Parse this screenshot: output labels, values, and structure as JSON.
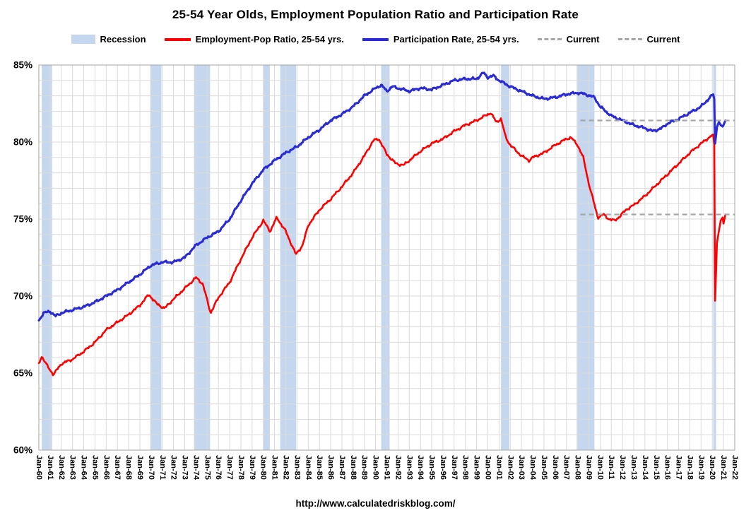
{
  "title": "25-54 Year Olds, Employment Population Ratio and Participation Rate",
  "footer_url": "http://www.calculatedriskblog.com/",
  "colors": {
    "employment_line": "#FF0000",
    "participation_line": "#2B2BD5",
    "recession_band": "#C5D7EE",
    "current_line": "#A6A6A6",
    "grid": "#DADADA",
    "plot_border": "#A6A6A6"
  },
  "legend": [
    {
      "label": "Recession",
      "type": "band"
    },
    {
      "label": "Employment-Pop Ratio, 25-54 yrs.",
      "type": "line",
      "color": "#FF0000"
    },
    {
      "label": "Participation Rate, 25-54 yrs.",
      "type": "line",
      "color": "#2B2BD5"
    },
    {
      "label": "Current",
      "type": "dashed"
    },
    {
      "label": "Current",
      "type": "dashed"
    }
  ],
  "chart_data": {
    "type": "line",
    "title": "25-54 Year Olds, Employment Population Ratio and Participation Rate",
    "xlabel": "",
    "ylabel": "",
    "grid": true,
    "legend_position": "top",
    "x_axis": {
      "start_year": 1960,
      "end_year": 2022,
      "tick_labels": [
        "Jan-60",
        "Jan-61",
        "Jan-62",
        "Jan-63",
        "Jan-64",
        "Jan-65",
        "Jan-66",
        "Jan-67",
        "Jan-68",
        "Jan-69",
        "Jan-70",
        "Jan-71",
        "Jan-72",
        "Jan-73",
        "Jan-74",
        "Jan-75",
        "Jan-76",
        "Jan-77",
        "Jan-78",
        "Jan-79",
        "Jan-80",
        "Jan-81",
        "Jan-82",
        "Jan-83",
        "Jan-84",
        "Jan-85",
        "Jan-86",
        "Jan-87",
        "Jan-88",
        "Jan-89",
        "Jan-90",
        "Jan-91",
        "Jan-92",
        "Jan-93",
        "Jan-94",
        "Jan-95",
        "Jan-96",
        "Jan-97",
        "Jan-98",
        "Jan-99",
        "Jan-00",
        "Jan-01",
        "Jan-02",
        "Jan-03",
        "Jan-04",
        "Jan-05",
        "Jan-06",
        "Jan-07",
        "Jan-08",
        "Jan-09",
        "Jan-10",
        "Jan-11",
        "Jan-12",
        "Jan-13",
        "Jan-14",
        "Jan-15",
        "Jan-16",
        "Jan-17",
        "Jan-18",
        "Jan-19",
        "Jan-20",
        "Jan-21",
        "Jan-22"
      ]
    },
    "y_axis": {
      "min": 60,
      "max": 85,
      "major_step": 5,
      "minor_step": 1,
      "tick_labels": [
        "60%",
        "65%",
        "70%",
        "75%",
        "80%",
        "85%"
      ]
    },
    "series": [
      {
        "name": "Employment-Pop Ratio, 25-54 yrs.",
        "color": "#FF0000",
        "points": [
          [
            1960.0,
            65.6
          ],
          [
            1960.25,
            66.1
          ],
          [
            1960.8,
            65.4
          ],
          [
            1961.3,
            64.9
          ],
          [
            1962.0,
            65.6
          ],
          [
            1963.0,
            65.9
          ],
          [
            1964.0,
            66.4
          ],
          [
            1965.0,
            67.0
          ],
          [
            1966.0,
            67.8
          ],
          [
            1967.0,
            68.3
          ],
          [
            1968.0,
            68.8
          ],
          [
            1969.0,
            69.4
          ],
          [
            1969.8,
            70.1
          ],
          [
            1970.5,
            69.5
          ],
          [
            1971.2,
            69.2
          ],
          [
            1972.0,
            69.8
          ],
          [
            1973.0,
            70.5
          ],
          [
            1974.0,
            71.2
          ],
          [
            1974.6,
            70.8
          ],
          [
            1975.3,
            68.9
          ],
          [
            1976.0,
            69.9
          ],
          [
            1977.0,
            70.9
          ],
          [
            1978.0,
            72.4
          ],
          [
            1979.0,
            73.8
          ],
          [
            1980.0,
            74.9
          ],
          [
            1980.6,
            74.2
          ],
          [
            1981.2,
            75.1
          ],
          [
            1982.0,
            74.2
          ],
          [
            1982.9,
            72.7
          ],
          [
            1983.5,
            73.3
          ],
          [
            1984.0,
            74.6
          ],
          [
            1985.0,
            75.6
          ],
          [
            1986.0,
            76.3
          ],
          [
            1987.0,
            77.1
          ],
          [
            1988.0,
            78.0
          ],
          [
            1989.0,
            79.1
          ],
          [
            1989.8,
            80.1
          ],
          [
            1990.3,
            80.2
          ],
          [
            1991.0,
            79.2
          ],
          [
            1991.8,
            78.6
          ],
          [
            1992.5,
            78.5
          ],
          [
            1993.0,
            78.8
          ],
          [
            1994.0,
            79.4
          ],
          [
            1995.0,
            79.9
          ],
          [
            1996.0,
            80.2
          ],
          [
            1997.0,
            80.7
          ],
          [
            1998.0,
            81.1
          ],
          [
            1999.0,
            81.4
          ],
          [
            2000.25,
            81.9
          ],
          [
            2000.75,
            81.3
          ],
          [
            2001.17,
            81.5
          ],
          [
            2001.6,
            80.3
          ],
          [
            2002.0,
            79.8
          ],
          [
            2003.0,
            79.1
          ],
          [
            2003.7,
            78.8
          ],
          [
            2004.0,
            79.0
          ],
          [
            2005.0,
            79.3
          ],
          [
            2006.0,
            79.8
          ],
          [
            2007.0,
            80.2
          ],
          [
            2007.4,
            80.3
          ],
          [
            2008.0,
            79.8
          ],
          [
            2008.5,
            79.0
          ],
          [
            2009.0,
            77.3
          ],
          [
            2009.8,
            75.1
          ],
          [
            2010.3,
            75.3
          ],
          [
            2010.8,
            75.0
          ],
          [
            2011.3,
            74.9
          ],
          [
            2011.8,
            75.2
          ],
          [
            2012.3,
            75.6
          ],
          [
            2013.0,
            75.9
          ],
          [
            2014.0,
            76.5
          ],
          [
            2015.0,
            77.2
          ],
          [
            2016.0,
            77.9
          ],
          [
            2017.0,
            78.6
          ],
          [
            2018.0,
            79.3
          ],
          [
            2019.0,
            79.9
          ],
          [
            2019.9,
            80.4
          ],
          [
            2020.08,
            80.5
          ],
          [
            2020.17,
            79.8
          ],
          [
            2020.25,
            69.7
          ],
          [
            2020.33,
            71.4
          ],
          [
            2020.42,
            73.5
          ],
          [
            2020.58,
            74.2
          ],
          [
            2020.75,
            74.9
          ],
          [
            2020.92,
            75.1
          ],
          [
            2021.0,
            74.7
          ],
          [
            2021.17,
            75.3
          ]
        ]
      },
      {
        "name": "Participation Rate, 25-54 yrs.",
        "color": "#2B2BD5",
        "points": [
          [
            1960.0,
            68.4
          ],
          [
            1960.4,
            68.9
          ],
          [
            1961.0,
            69.0
          ],
          [
            1961.5,
            68.7
          ],
          [
            1962.0,
            68.9
          ],
          [
            1963.0,
            69.1
          ],
          [
            1964.0,
            69.3
          ],
          [
            1965.0,
            69.6
          ],
          [
            1966.0,
            70.0
          ],
          [
            1967.0,
            70.4
          ],
          [
            1968.0,
            70.9
          ],
          [
            1969.0,
            71.4
          ],
          [
            1970.0,
            72.0
          ],
          [
            1971.0,
            72.2
          ],
          [
            1972.0,
            72.2
          ],
          [
            1973.0,
            72.5
          ],
          [
            1974.0,
            73.3
          ],
          [
            1975.0,
            73.8
          ],
          [
            1976.0,
            74.2
          ],
          [
            1977.0,
            75.0
          ],
          [
            1978.0,
            76.2
          ],
          [
            1979.0,
            77.3
          ],
          [
            1980.0,
            78.2
          ],
          [
            1981.0,
            78.8
          ],
          [
            1982.0,
            79.3
          ],
          [
            1983.0,
            79.7
          ],
          [
            1984.0,
            80.3
          ],
          [
            1985.0,
            80.8
          ],
          [
            1986.0,
            81.4
          ],
          [
            1987.0,
            81.8
          ],
          [
            1988.0,
            82.3
          ],
          [
            1989.0,
            83.0
          ],
          [
            1990.0,
            83.5
          ],
          [
            1990.5,
            83.7
          ],
          [
            1991.0,
            83.3
          ],
          [
            1991.5,
            83.6
          ],
          [
            1992.0,
            83.5
          ],
          [
            1993.0,
            83.3
          ],
          [
            1994.0,
            83.5
          ],
          [
            1995.0,
            83.4
          ],
          [
            1996.0,
            83.7
          ],
          [
            1997.0,
            84.0
          ],
          [
            1998.0,
            84.1
          ],
          [
            1999.0,
            84.1
          ],
          [
            1999.6,
            84.5
          ],
          [
            2000.0,
            84.2
          ],
          [
            2000.5,
            84.3
          ],
          [
            2001.0,
            84.0
          ],
          [
            2002.0,
            83.6
          ],
          [
            2003.0,
            83.3
          ],
          [
            2004.0,
            83.0
          ],
          [
            2005.0,
            82.8
          ],
          [
            2006.0,
            82.9
          ],
          [
            2007.0,
            83.1
          ],
          [
            2008.0,
            83.2
          ],
          [
            2008.7,
            83.1
          ],
          [
            2009.5,
            82.9
          ],
          [
            2010.0,
            82.3
          ],
          [
            2011.0,
            81.7
          ],
          [
            2012.0,
            81.4
          ],
          [
            2013.0,
            81.1
          ],
          [
            2014.0,
            80.9
          ],
          [
            2014.7,
            80.7
          ],
          [
            2015.5,
            80.9
          ],
          [
            2016.0,
            81.2
          ],
          [
            2017.0,
            81.5
          ],
          [
            2018.0,
            81.9
          ],
          [
            2019.0,
            82.3
          ],
          [
            2019.8,
            82.9
          ],
          [
            2020.08,
            83.1
          ],
          [
            2020.17,
            82.8
          ],
          [
            2020.25,
            79.9
          ],
          [
            2020.42,
            81.0
          ],
          [
            2020.58,
            81.3
          ],
          [
            2020.75,
            81.1
          ],
          [
            2020.92,
            81.0
          ],
          [
            2021.0,
            81.1
          ],
          [
            2021.17,
            81.4
          ]
        ]
      }
    ],
    "current_lines": [
      {
        "label": "Current",
        "value": 81.4,
        "from_year": 2008.25,
        "to_year": 2022
      },
      {
        "label": "Current",
        "value": 75.3,
        "from_year": 2008.25,
        "to_year": 2022
      }
    ],
    "recessions": [
      [
        1960.25,
        1961.17
      ],
      [
        1969.92,
        1970.92
      ],
      [
        1973.83,
        1975.25
      ],
      [
        1980.0,
        1980.58
      ],
      [
        1981.5,
        1982.92
      ],
      [
        1990.5,
        1991.25
      ],
      [
        2001.17,
        2001.92
      ],
      [
        2007.92,
        2009.5
      ],
      [
        2020.08,
        2020.33
      ]
    ]
  }
}
